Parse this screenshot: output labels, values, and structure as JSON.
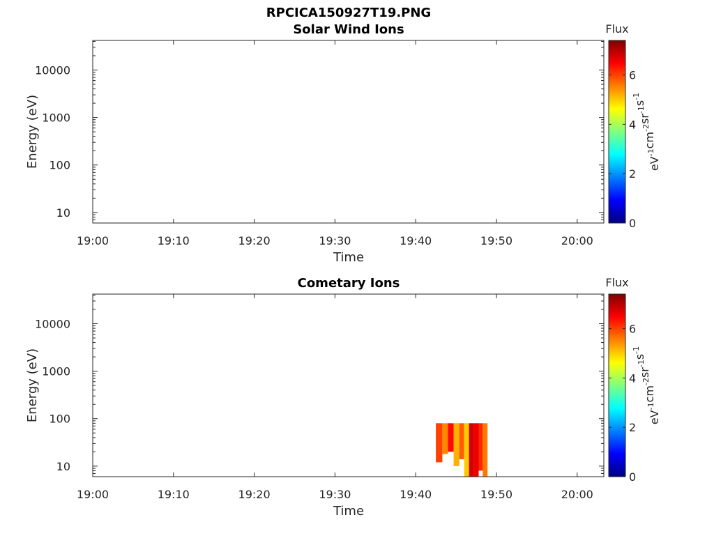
{
  "figure_title": "RPCICA150927T19.PNG",
  "chart_data": [
    {
      "type": "heatmap",
      "title": "Solar Wind Ions",
      "xlabel": "Time",
      "ylabel": "Energy (eV)",
      "x_ticks": [
        "19:00",
        "19:10",
        "19:20",
        "19:30",
        "19:40",
        "19:50",
        "20:00"
      ],
      "xlim_minutes": [
        0,
        63.3
      ],
      "y_ticks": [
        "10",
        "100",
        "1000",
        "10000"
      ],
      "y_scale": "log",
      "ylim": [
        6,
        42000
      ],
      "colorbar": {
        "title": "Flux",
        "label": "eV-1cm-2sr-1s-1",
        "ticks": [
          "0",
          "2",
          "4",
          "6"
        ],
        "range": [
          0,
          7.4
        ],
        "colormap": "jet"
      },
      "data": []
    },
    {
      "type": "heatmap",
      "title": "Cometary Ions",
      "xlabel": "Time",
      "ylabel": "Energy (eV)",
      "x_ticks": [
        "19:00",
        "19:10",
        "19:20",
        "19:30",
        "19:40",
        "19:50",
        "20:00"
      ],
      "xlim_minutes": [
        0,
        63.3
      ],
      "y_ticks": [
        "10",
        "100",
        "1000",
        "10000"
      ],
      "y_scale": "log",
      "ylim": [
        6,
        42000
      ],
      "colorbar": {
        "title": "Flux",
        "label": "eV-1cm-2sr-1s-1",
        "ticks": [
          "0",
          "2",
          "4",
          "6"
        ],
        "range": [
          0,
          7.4
        ],
        "colormap": "jet"
      },
      "data": [
        {
          "t_start": 42.5,
          "t_end": 43.3,
          "e_min": 12,
          "e_max": 80,
          "flux": 6.0
        },
        {
          "t_start": 43.3,
          "t_end": 44.0,
          "e_min": 18,
          "e_max": 80,
          "flux": 5.5
        },
        {
          "t_start": 44.0,
          "t_end": 44.7,
          "e_min": 20,
          "e_max": 80,
          "flux": 6.4
        },
        {
          "t_start": 44.7,
          "t_end": 45.4,
          "e_min": 10,
          "e_max": 80,
          "flux": 5.2
        },
        {
          "t_start": 45.4,
          "t_end": 46.0,
          "e_min": 14,
          "e_max": 80,
          "flux": 5.8
        },
        {
          "t_start": 46.0,
          "t_end": 46.6,
          "e_min": 6,
          "e_max": 80,
          "flux": 5.0
        },
        {
          "t_start": 46.6,
          "t_end": 47.2,
          "e_min": 6,
          "e_max": 80,
          "flux": 6.8
        },
        {
          "t_start": 47.2,
          "t_end": 47.8,
          "e_min": 6,
          "e_max": 80,
          "flux": 6.6
        },
        {
          "t_start": 47.8,
          "t_end": 48.3,
          "e_min": 8,
          "e_max": 80,
          "flux": 6.2
        },
        {
          "t_start": 48.3,
          "t_end": 48.9,
          "e_min": 6,
          "e_max": 80,
          "flux": 5.6
        }
      ]
    }
  ]
}
